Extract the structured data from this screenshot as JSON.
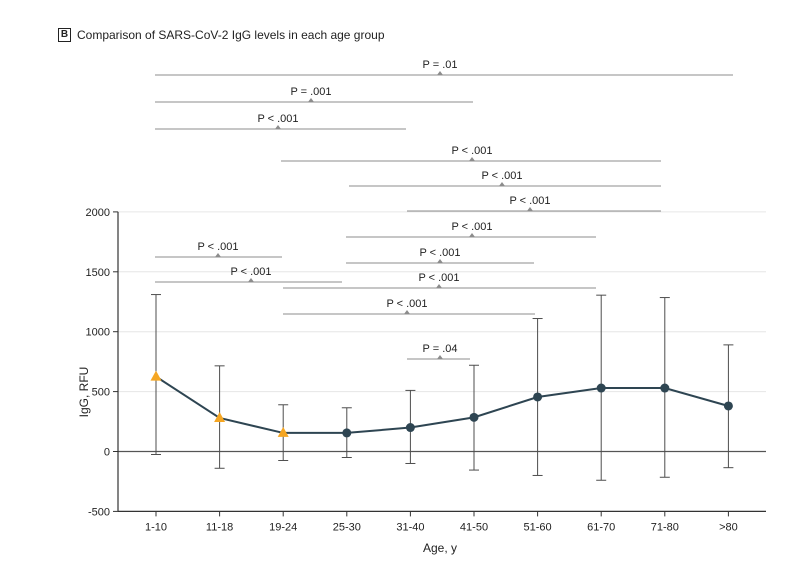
{
  "panel": {
    "letter": "B",
    "title": "Comparison of SARS-CoV-2 IgG levels in each age group"
  },
  "colors": {
    "series": "#2e4552",
    "highlight": "#f5a623",
    "errorbar": "#4d4d4d",
    "bracket": "#8c8c8c",
    "grid": "#e6e6e6",
    "axis": "#333333"
  },
  "chart_data": {
    "type": "line",
    "title": "Comparison of SARS-CoV-2 IgG levels in each age group",
    "xlabel": "Age, y",
    "ylabel": "IgG, RFU",
    "ylim": [
      -500,
      2000
    ],
    "yticks": [
      -500,
      0,
      500,
      1000,
      1500,
      2000
    ],
    "grid": "horizontal",
    "categories": [
      "1-10",
      "11-18",
      "19-24",
      "25-30",
      "31-40",
      "41-50",
      "51-60",
      "61-70",
      "71-80",
      ">80"
    ],
    "series": [
      {
        "name": "IgG",
        "values": [
          625,
          280,
          155,
          155,
          200,
          285,
          455,
          530,
          530,
          380
        ],
        "err_low": [
          -25,
          -140,
          -75,
          -50,
          -100,
          -155,
          -200,
          -240,
          -215,
          -135
        ],
        "err_high": [
          1310,
          715,
          390,
          365,
          510,
          720,
          1110,
          1305,
          1285,
          890
        ],
        "markers": [
          "triangle",
          "triangle",
          "triangle",
          "circle",
          "circle",
          "circle",
          "circle",
          "circle",
          "circle",
          "circle"
        ]
      }
    ],
    "annotations": [
      {
        "from": "1-10",
        "to": ">80",
        "label": "P = .01"
      },
      {
        "from": "1-10",
        "to": "41-50",
        "label": "P = .001"
      },
      {
        "from": "1-10",
        "to": "31-40",
        "label": "P < .001"
      },
      {
        "from": "19-24",
        "to": "71-80",
        "label": "P < .001"
      },
      {
        "from": "25-30",
        "to": "71-80",
        "label": "P < .001"
      },
      {
        "from": "31-40",
        "to": "71-80",
        "label": "P < .001"
      },
      {
        "from": "1-10",
        "to": "19-24",
        "label": "P < .001"
      },
      {
        "from": "25-30",
        "to": "61-70",
        "label": "P < .001"
      },
      {
        "from": "1-10",
        "to": "25-30",
        "label": "P < .001"
      },
      {
        "from": "25-30",
        "to": "51-60",
        "label": "P < .001"
      },
      {
        "from": "19-24",
        "to": "61-70",
        "label": "P < .001"
      },
      {
        "from": "19-24",
        "to": "51-60",
        "label": "P < .001"
      },
      {
        "from": "31-40",
        "to": "41-50",
        "label": "P = .04"
      }
    ]
  }
}
